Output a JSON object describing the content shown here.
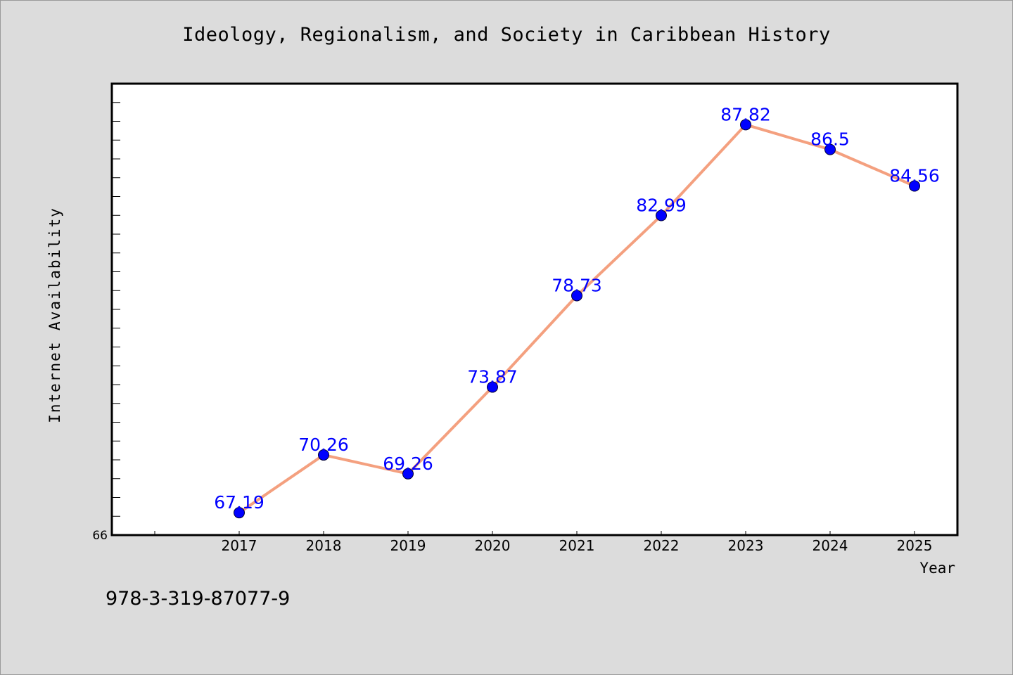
{
  "chart_data": {
    "type": "line",
    "title": "Ideology, Regionalism, and Society in Caribbean History",
    "xlabel": "Year",
    "ylabel": "Internet Availability",
    "categories": [
      "2017",
      "2018",
      "2019",
      "2020",
      "2021",
      "2022",
      "2023",
      "2024",
      "2025"
    ],
    "series": [
      {
        "values": [
          67.19,
          70.26,
          69.26,
          73.87,
          78.73,
          82.99,
          87.82,
          86.5,
          84.56
        ],
        "data_labels": [
          "67.19",
          "70.26",
          "69.26",
          "73.87",
          "78.73",
          "82.99",
          "87.82",
          "86.5",
          "84.56"
        ]
      }
    ],
    "ylim": [
      66,
      90
    ],
    "y_tick_labels": [
      "66"
    ],
    "grid": false,
    "legend": "none",
    "colors": {
      "line": "#f4a07f",
      "marker": "#0000ff",
      "label": "#0000ff",
      "background": "#dcdcdc",
      "plot": "#ffffff"
    }
  },
  "footer": {
    "isbn": "978-3-319-87077-9"
  }
}
